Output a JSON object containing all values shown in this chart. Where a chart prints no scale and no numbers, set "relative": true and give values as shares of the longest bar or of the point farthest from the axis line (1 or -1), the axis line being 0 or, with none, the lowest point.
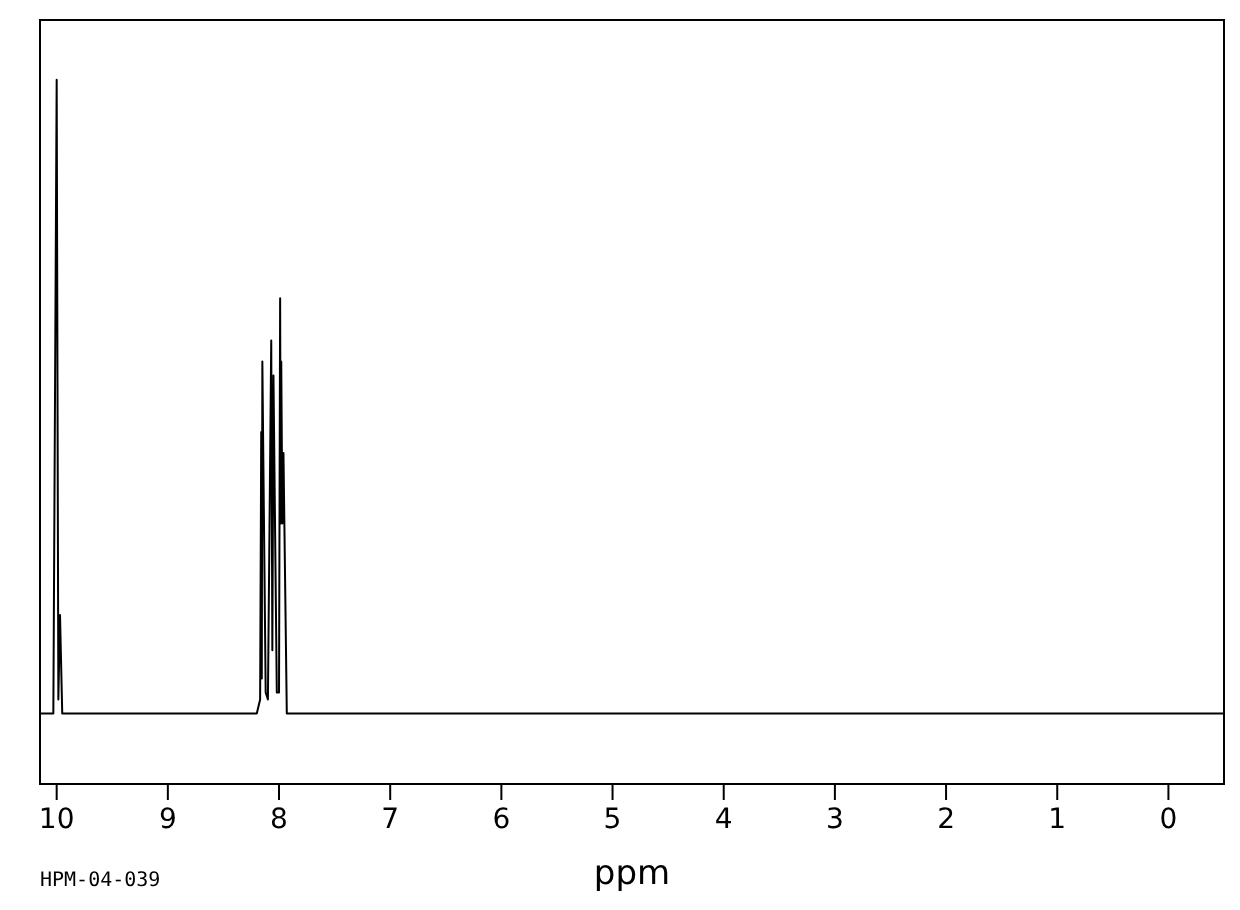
{
  "chart_data": {
    "type": "line",
    "xlabel": "ppm",
    "annotations": [
      "HPM-04-039"
    ],
    "relative": true,
    "xlim": [
      10.15,
      -0.5
    ],
    "xticks": [
      10,
      9,
      8,
      7,
      6,
      5,
      4,
      3,
      2,
      1,
      0
    ],
    "series": [
      {
        "color": "#000000",
        "x": [
          10.15,
          10.03,
          10.0,
          9.985,
          9.97,
          9.95,
          8.2,
          8.17,
          8.16,
          8.155,
          8.15,
          8.12,
          8.1,
          8.07,
          8.06,
          8.05,
          8.02,
          8.0,
          7.99,
          7.985,
          7.98,
          7.97,
          7.96,
          7.93,
          -0.5
        ],
        "values": [
          0.1,
          0.1,
          1,
          0.12,
          0.24,
          0.1,
          0.1,
          0.12,
          0.5,
          0.15,
          0.6,
          0.13,
          0.12,
          0.63,
          0.19,
          0.58,
          0.13,
          0.13,
          0.69,
          0.37,
          0.6,
          0.37,
          0.47,
          0.1,
          0.1
        ]
      }
    ]
  }
}
